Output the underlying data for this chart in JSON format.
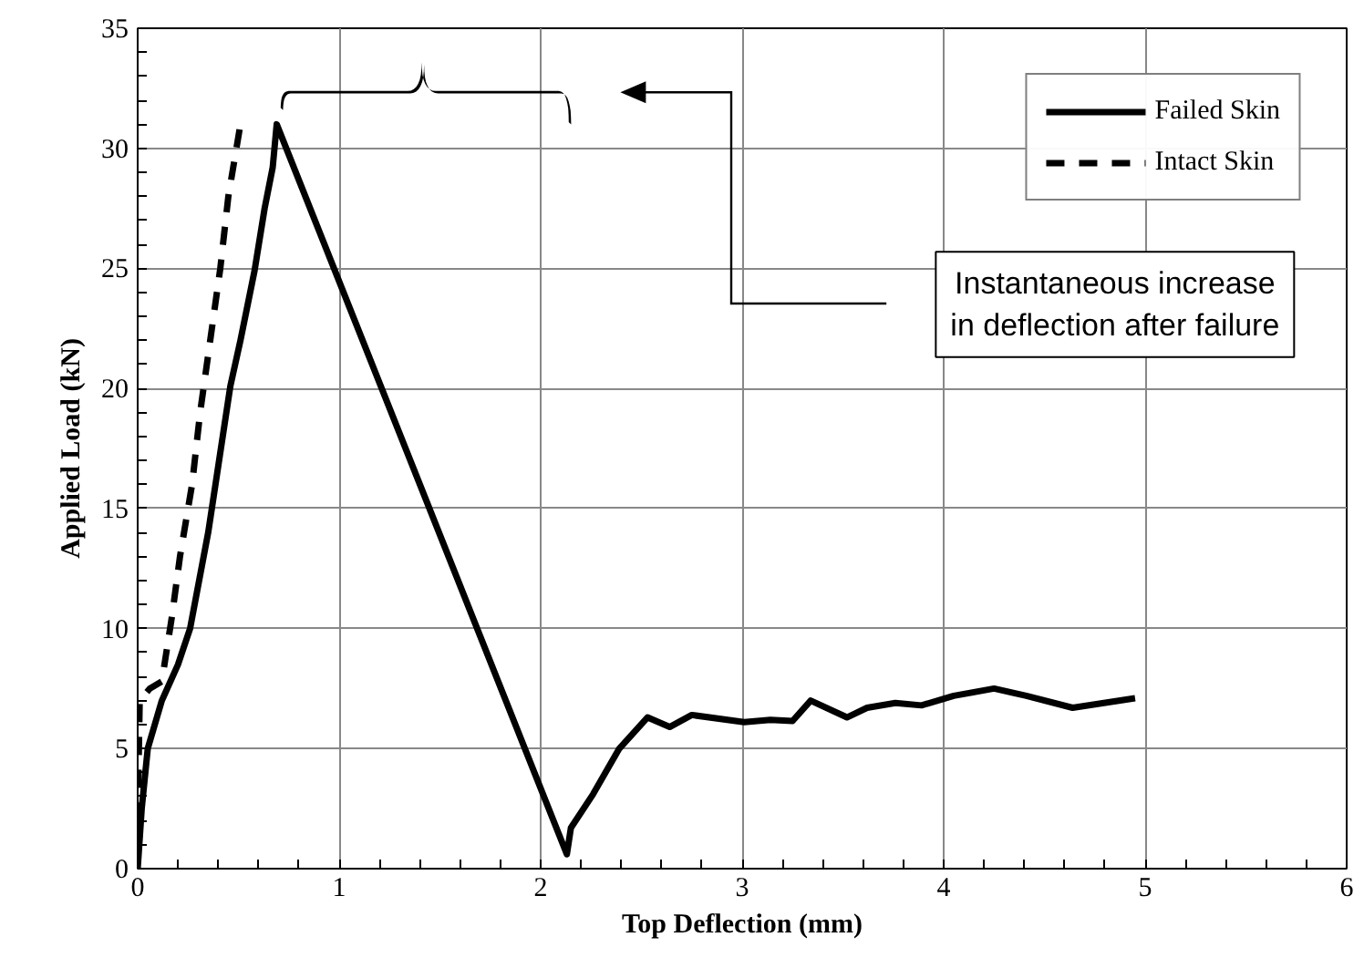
{
  "chart_data": {
    "type": "line",
    "xlabel": "Top Deflection (mm)",
    "ylabel": "Applied Load (kN)",
    "xlim": [
      0,
      6
    ],
    "ylim": [
      0,
      35
    ],
    "xticks": [
      0,
      1,
      2,
      3,
      4,
      5,
      6
    ],
    "yticks": [
      0,
      5,
      10,
      15,
      20,
      25,
      30,
      35
    ],
    "grid": true,
    "legend": "top right",
    "marker": "none",
    "series": [
      {
        "name": "Failed Skin",
        "color": "#000000",
        "line_style": "solid",
        "x": [
          0,
          0.02,
          0.05,
          0.12,
          0.2,
          0.26,
          0.35,
          0.46,
          0.51,
          0.58,
          0.63,
          0.67,
          0.69,
          2.13,
          2.15,
          2.26,
          2.39,
          2.53,
          2.64,
          2.75,
          3.01,
          3.14,
          3.25,
          3.34,
          3.52,
          3.62,
          3.76,
          3.89,
          4.05,
          4.25,
          4.41,
          4.64,
          4.95
        ],
        "values": [
          0,
          2.5,
          5,
          7,
          8.5,
          10,
          14,
          20.1,
          22,
          24.9,
          27.5,
          29.2,
          31,
          0.6,
          1.7,
          3.1,
          5,
          6.3,
          5.9,
          6.4,
          6.1,
          6.2,
          6.15,
          7,
          6.3,
          6.7,
          6.9,
          6.8,
          7.2,
          7.5,
          7.2,
          6.7,
          7.1
        ]
      },
      {
        "name": "Intact Skin",
        "color": "#000000",
        "line_style": "dashed",
        "x": [
          0,
          0.01,
          0.06,
          0.12,
          0.17,
          0.21,
          0.27,
          0.31,
          0.36,
          0.41,
          0.45,
          0.51
        ],
        "values": [
          2,
          7,
          7.5,
          7.8,
          10.5,
          13,
          16,
          19,
          22,
          25,
          28,
          31
        ]
      }
    ],
    "annotations": [
      "Instantaneous increase\nin deflection after failure"
    ]
  }
}
